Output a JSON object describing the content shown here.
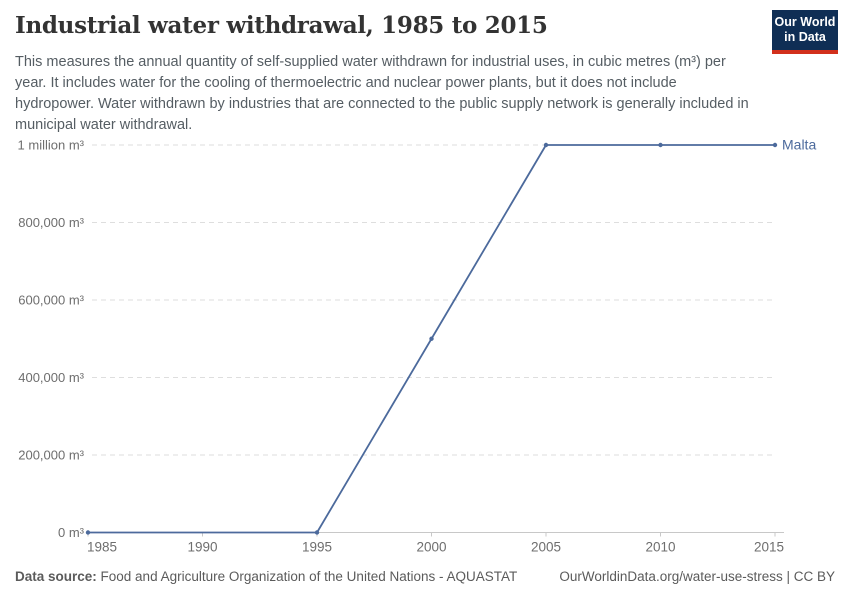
{
  "header": {
    "title": "Industrial water withdrawal, 1985 to 2015",
    "subtitle": "This measures the annual quantity of self-supplied water withdrawn for industrial uses, in cubic metres (m³) per year. It includes water for the cooling of thermoelectric and nuclear power plants, but it does not include hydropower. Water withdrawn by industries that are connected to the public supply network is generally included in municipal water withdrawal.",
    "logo": {
      "line1": "Our World",
      "line2": "in Data",
      "bg_color": "#0F2E55",
      "stripe_color": "#D2301C"
    }
  },
  "chart_data": {
    "type": "line",
    "title": "Industrial water withdrawal, 1985 to 2015",
    "unit": "m³",
    "x": [
      1985,
      1995,
      2000,
      2005,
      2010,
      2015
    ],
    "series": [
      {
        "name": "Malta",
        "color": "#4C6A9C",
        "values": [
          0,
          0,
          500000,
          1000000,
          1000000,
          1000000
        ]
      }
    ],
    "xlim": [
      1985,
      2015
    ],
    "ylim": [
      0,
      1000000
    ],
    "x_ticks": [
      1985,
      1990,
      1995,
      2000,
      2005,
      2010,
      2015
    ],
    "y_ticks": [
      {
        "value": 0,
        "label": "0 m³"
      },
      {
        "value": 200000,
        "label": "200,000 m³"
      },
      {
        "value": 400000,
        "label": "400,000 m³"
      },
      {
        "value": 600000,
        "label": "600,000 m³"
      },
      {
        "value": 800000,
        "label": "800,000 m³"
      },
      {
        "value": 1000000,
        "label": "1 million m³"
      }
    ],
    "grid": "horizontal-dashed",
    "legend_position": "end-of-line",
    "colors": {
      "gridline": "#DEDEDE",
      "axis_line": "#C8C8C8",
      "tick_label": "#6E6E6E"
    }
  },
  "footer": {
    "source_label": "Data source:",
    "source_text": " Food and Agriculture Organization of the United Nations - AQUASTAT",
    "link_text": "OurWorldinData.org/water-use-stress | CC BY"
  }
}
